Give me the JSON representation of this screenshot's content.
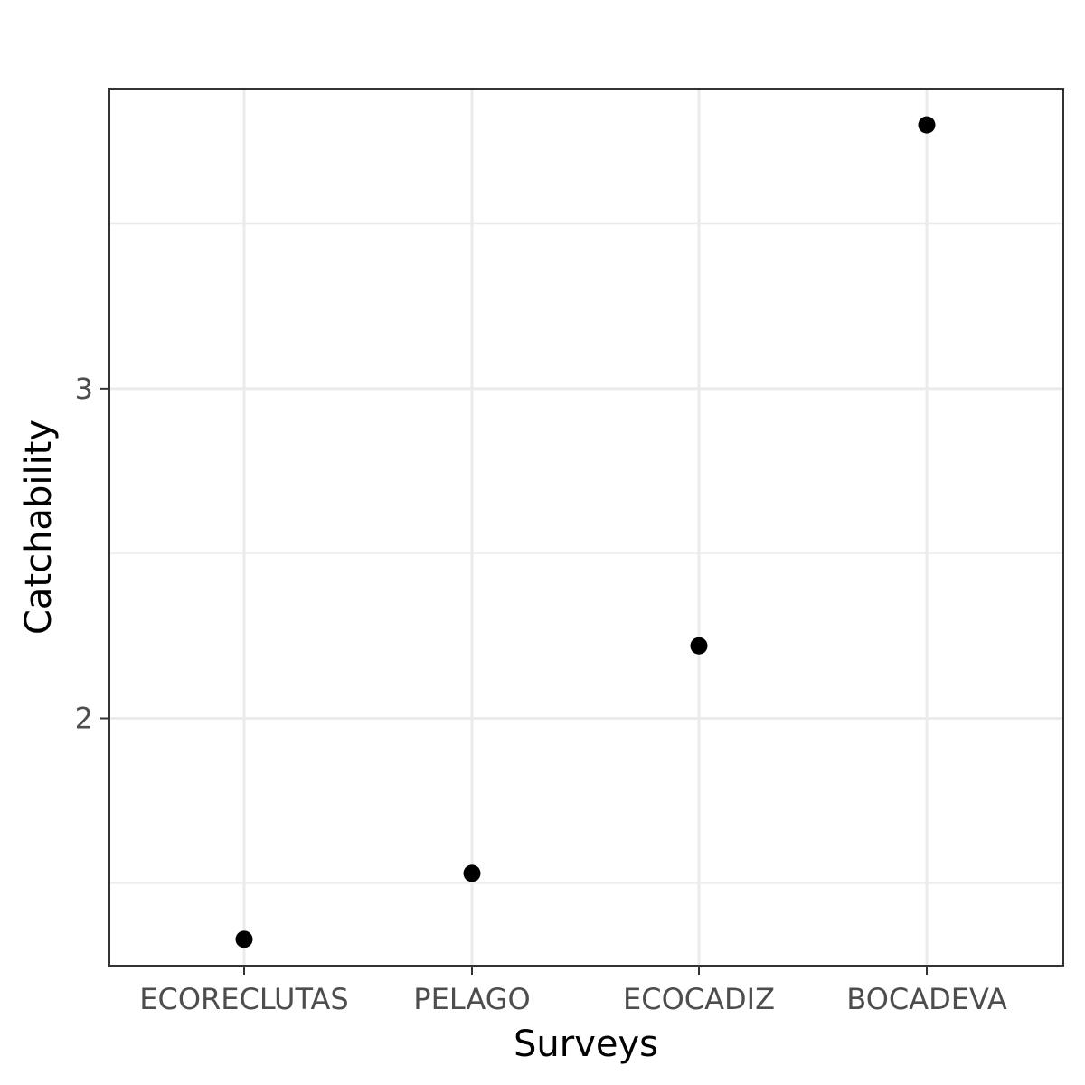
{
  "chart_data": {
    "type": "scatter",
    "title": "",
    "xlabel": "Surveys",
    "ylabel": "Catchability",
    "categories": [
      "ECORECLUTAS",
      "PELAGO",
      "ECOCADIZ",
      "BOCADEVA"
    ],
    "values": [
      1.33,
      1.53,
      2.22,
      3.8
    ],
    "ylim": [
      1.25,
      3.91
    ],
    "yticks": [
      2,
      3
    ],
    "yticks_minor": [
      1.5,
      2.5,
      3.5
    ],
    "grid": true,
    "point_color": "#000000",
    "grid_color": "#ebebeb",
    "panel_border_color": "#333333"
  }
}
